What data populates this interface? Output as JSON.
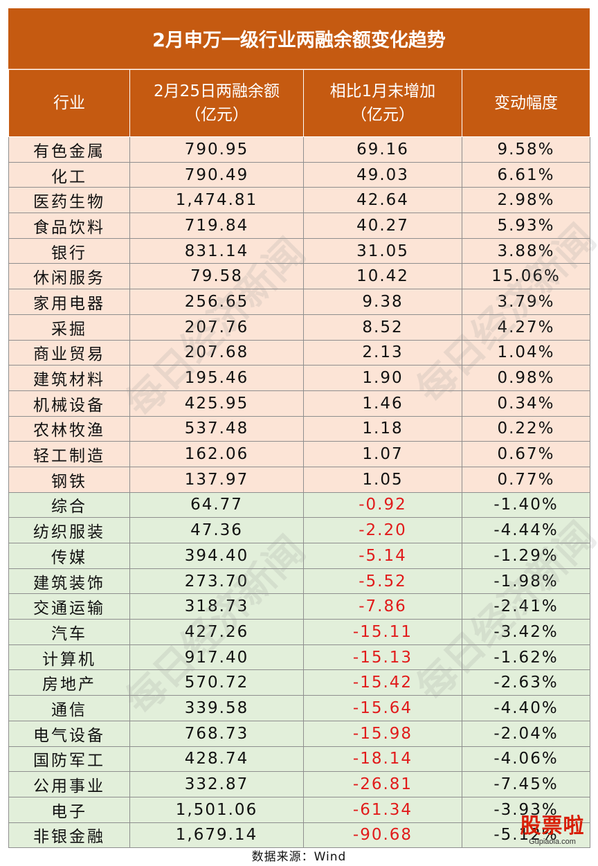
{
  "title": "2月申万一级行业两融余额变化趋势",
  "headers": [
    "行业",
    "2月25日两融余额",
    "（亿元）",
    "相比1月末增加",
    "（亿元）",
    "变动幅度"
  ],
  "rows": [
    [
      "有色金属",
      "790.95",
      "69.16",
      "9.58%"
    ],
    [
      "化工",
      "790.49",
      "49.03",
      "6.61%"
    ],
    [
      "医药生物",
      "1,474.81",
      "42.64",
      "2.98%"
    ],
    [
      "食品饮料",
      "719.84",
      "40.27",
      "5.93%"
    ],
    [
      "银行",
      "831.14",
      "31.05",
      "3.88%"
    ],
    [
      "休闲服务",
      "79.58",
      "10.42",
      "15.06%"
    ],
    [
      "家用电器",
      "256.65",
      "9.38",
      "3.79%"
    ],
    [
      "采掘",
      "207.76",
      "8.52",
      "4.27%"
    ],
    [
      "商业贸易",
      "207.68",
      "2.13",
      "1.04%"
    ],
    [
      "建筑材料",
      "195.46",
      "1.90",
      "0.98%"
    ],
    [
      "机械设备",
      "425.95",
      "1.46",
      "0.34%"
    ],
    [
      "农林牧渔",
      "537.48",
      "1.18",
      "0.22%"
    ],
    [
      "轻工制造",
      "162.06",
      "1.07",
      "0.67%"
    ],
    [
      "钢铁",
      "137.97",
      "1.05",
      "0.77%"
    ],
    [
      "综合",
      "64.77",
      "-0.92",
      "-1.40%"
    ],
    [
      "纺织服装",
      "47.36",
      "-2.20",
      "-4.44%"
    ],
    [
      "传媒",
      "394.40",
      "-5.14",
      "-1.29%"
    ],
    [
      "建筑装饰",
      "273.70",
      "-5.52",
      "-1.98%"
    ],
    [
      "交通运输",
      "318.73",
      "-7.86",
      "-2.41%"
    ],
    [
      "汽车",
      "427.26",
      "-15.11",
      "-3.42%"
    ],
    [
      "计算机",
      "917.40",
      "-15.13",
      "-1.62%"
    ],
    [
      "房地产",
      "570.72",
      "-15.42",
      "-2.63%"
    ],
    [
      "通信",
      "339.58",
      "-15.64",
      "-4.40%"
    ],
    [
      "电气设备",
      "768.73",
      "-15.98",
      "-2.04%"
    ],
    [
      "国防军工",
      "428.74",
      "-18.14",
      "-4.06%"
    ],
    [
      "公用事业",
      "332.87",
      "-26.81",
      "-7.45%"
    ],
    [
      "电子",
      "1,501.06",
      "-61.34",
      "-3.93%"
    ],
    [
      "非银金融",
      "1,679.14",
      "-90.68",
      "-5.12%"
    ]
  ],
  "source": "数据来源：Wind",
  "watermark": "每日经济新闻",
  "logo": {
    "main": "股票啦",
    "sub": "Gupiaola.com"
  },
  "colors": {
    "header": "#c55a11",
    "up_row": "#fce4d6",
    "down_row": "#e2efda",
    "negative": "#e11b1b"
  }
}
